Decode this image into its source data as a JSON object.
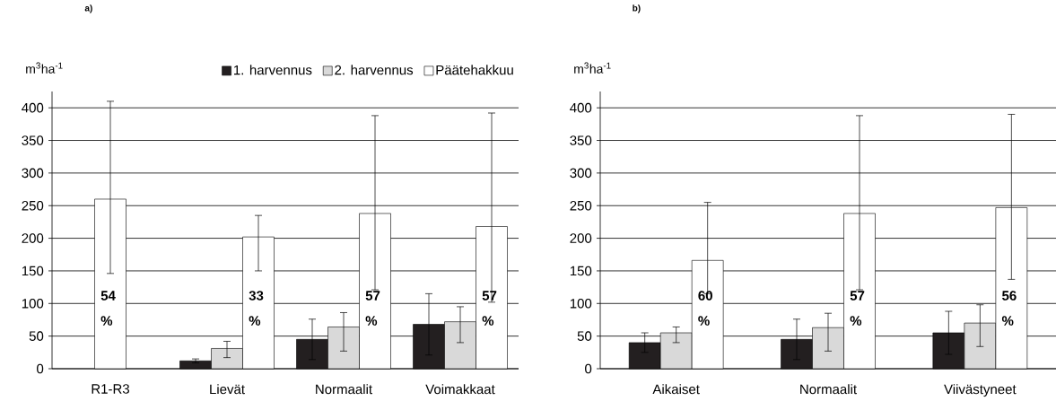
{
  "chart_data": [
    {
      "type": "bar",
      "title": "a)",
      "ylabel": "m$^{3}$ha$^{-1}$",
      "categories": [
        "R1-R3",
        "Lievät",
        "Normaalit",
        "Voimakkaat"
      ],
      "ylim": [
        0,
        425
      ],
      "yticks": [
        0,
        50,
        100,
        150,
        200,
        250,
        300,
        350,
        400
      ],
      "grid": "y",
      "legend": "top right",
      "series": [
        {
          "name": "1. harvennus",
          "color": "#231f20",
          "values": [
            null,
            12,
            45,
            68
          ],
          "errors": [
            null,
            3,
            31,
            47
          ]
        },
        {
          "name": "2. harvennus",
          "color": "#d9d9d9",
          "values": [
            null,
            31,
            64,
            72
          ],
          "errors": [
            null,
            [
              17,
              42
            ],
            [
              27,
              86
            ],
            [
              40,
              95
            ]
          ]
        },
        {
          "name": "Päätehakkuu",
          "color": "#ffffff",
          "values": [
            260,
            202,
            238,
            218
          ],
          "errors": [
            [
              146,
              410
            ],
            [
              150,
              235
            ],
            [
              121,
              388
            ],
            [
              102,
              392
            ]
          ]
        }
      ],
      "annotations": [
        "54 %",
        "33 %",
        "57 %",
        "57 %"
      ]
    },
    {
      "type": "bar",
      "title": "b)",
      "ylabel": "m$^{3}$ha$^{-1}$",
      "categories": [
        "Aikaiset",
        "Normaalit",
        "Viivästyneet"
      ],
      "ylim": [
        0,
        425
      ],
      "yticks": [
        0,
        50,
        100,
        150,
        200,
        250,
        300,
        350,
        400
      ],
      "grid": "y",
      "legend": false,
      "series": [
        {
          "color": "#231f20",
          "values": [
            40,
            45,
            55
          ],
          "errors": [
            15,
            31,
            33
          ]
        },
        {
          "color": "#d9d9d9",
          "values": [
            55,
            63,
            70
          ],
          "errors": [
            [
              40,
              64
            ],
            [
              27,
              85
            ],
            [
              34,
              98
            ]
          ]
        },
        {
          "color": "#ffffff",
          "values": [
            166,
            238,
            247
          ],
          "errors": [
            [
              115,
              255
            ],
            [
              121,
              388
            ],
            [
              137,
              390
            ]
          ]
        }
      ],
      "annotations": [
        "60 %",
        "57 %",
        "56 %"
      ]
    }
  ]
}
